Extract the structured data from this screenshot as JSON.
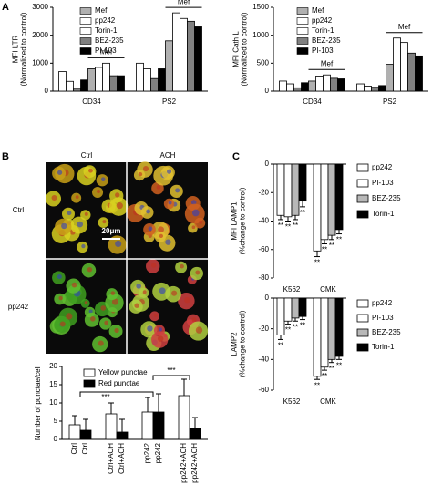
{
  "panel_labels": [
    "A",
    "B",
    "C"
  ],
  "image_panel": {
    "column_labels": [
      "Ctrl",
      "ACH"
    ],
    "row_labels": [
      "Ctrl",
      "pp242"
    ],
    "scale_bar": "20μm"
  },
  "chart_data": [
    {
      "type": "bar",
      "ylabel": [
        "MFI LTR",
        "(Normalized to control)"
      ],
      "categories": [
        "CD34",
        "PS2"
      ],
      "ylim": [
        0,
        3000
      ],
      "yticks": [
        0,
        1000,
        2000,
        3000
      ],
      "annotations": [
        "Mef",
        "Mef"
      ],
      "legend": [
        {
          "name": "Mef",
          "color": "#b0b0b0"
        },
        {
          "name": "pp242",
          "color": "#ffffff"
        },
        {
          "name": "Torin-1",
          "color": "#ffffff"
        },
        {
          "name": "BEZ-235",
          "color": "#808080"
        },
        {
          "name": "PI-103",
          "color": "#000000"
        }
      ],
      "series": [
        {
          "color": "#ffffff",
          "values": [
            700,
            1000
          ]
        },
        {
          "color": "#ffffff",
          "values": [
            350,
            800
          ]
        },
        {
          "color": "#808080",
          "values": [
            100,
            450
          ]
        },
        {
          "color": "#000000",
          "values": [
            400,
            800
          ]
        },
        {
          "color": "#b0b0b0",
          "values": [
            800,
            1800
          ]
        },
        {
          "color": "#ffffff",
          "values": [
            850,
            2800
          ]
        },
        {
          "color": "#ffffff",
          "values": [
            1000,
            2600
          ]
        },
        {
          "color": "#808080",
          "values": [
            550,
            2500
          ]
        },
        {
          "color": "#000000",
          "values": [
            550,
            2300
          ]
        }
      ]
    },
    {
      "type": "bar",
      "ylabel": [
        "MFI Cath L",
        "(Normalized to control)"
      ],
      "categories": [
        "CD34",
        "PS2"
      ],
      "ylim": [
        0,
        1500
      ],
      "yticks": [
        0,
        500,
        1000,
        1500
      ],
      "annotations": [
        "Mef",
        "Mef"
      ],
      "legend": [
        {
          "name": "Mef",
          "color": "#b0b0b0"
        },
        {
          "name": "pp242",
          "color": "#ffffff"
        },
        {
          "name": "Torin-1",
          "color": "#ffffff"
        },
        {
          "name": "BEZ-235",
          "color": "#808080"
        },
        {
          "name": "PI-103",
          "color": "#000000"
        }
      ],
      "series": [
        {
          "color": "#ffffff",
          "values": [
            180,
            130
          ]
        },
        {
          "color": "#ffffff",
          "values": [
            130,
            90
          ]
        },
        {
          "color": "#808080",
          "values": [
            60,
            70
          ]
        },
        {
          "color": "#000000",
          "values": [
            150,
            100
          ]
        },
        {
          "color": "#b0b0b0",
          "values": [
            180,
            480
          ]
        },
        {
          "color": "#ffffff",
          "values": [
            270,
            950
          ]
        },
        {
          "color": "#ffffff",
          "values": [
            290,
            870
          ]
        },
        {
          "color": "#808080",
          "values": [
            230,
            680
          ]
        },
        {
          "color": "#000000",
          "values": [
            220,
            630
          ]
        }
      ]
    },
    {
      "type": "bar",
      "ylabel": [
        "Number of punctae/cell"
      ],
      "categories": [
        "Ctrl",
        "Ctrl+ACH",
        "pp242",
        "pp242+ACH"
      ],
      "ylim": [
        0,
        20
      ],
      "yticks": [
        0,
        5,
        10,
        15,
        20
      ],
      "annotations": [
        "***",
        "***"
      ],
      "series": [
        {
          "name": "Yellow punctae",
          "color": "#ffffff",
          "values": [
            4,
            7,
            7.5,
            12
          ],
          "errors": [
            2.5,
            3,
            4,
            4.5
          ]
        },
        {
          "name": "Red punctae",
          "color": "#000000",
          "values": [
            2.5,
            2,
            7.5,
            3
          ],
          "errors": [
            3,
            3.5,
            5,
            3
          ]
        }
      ]
    },
    {
      "type": "bar",
      "ylabel": [
        "MFI LAMP1",
        "(%change to control)"
      ],
      "categories": [
        "K562",
        "CMK"
      ],
      "ylim": [
        -80,
        0
      ],
      "yticks": [
        0,
        -20,
        -40,
        -60,
        -80
      ],
      "series": [
        {
          "name": "pp242",
          "color": "#ffffff",
          "values": [
            -36,
            -61
          ],
          "errors": [
            3,
            4
          ],
          "significance": [
            "**",
            "**"
          ]
        },
        {
          "name": "PI-103",
          "color": "#ffffff",
          "values": [
            -37,
            -53
          ],
          "errors": [
            3,
            3
          ],
          "significance": [
            "**",
            "**"
          ]
        },
        {
          "name": "BEZ-235",
          "color": "#b8b8b8",
          "values": [
            -36,
            -50
          ],
          "errors": [
            3,
            3
          ],
          "significance": [
            "**",
            "**"
          ]
        },
        {
          "name": "Torin-1",
          "color": "#000000",
          "values": [
            -26,
            -46
          ],
          "errors": [
            4,
            3
          ],
          "significance": [
            "**",
            "**"
          ]
        }
      ]
    },
    {
      "type": "bar",
      "ylabel": [
        "LAMP2",
        "(%change to control)"
      ],
      "categories": [
        "K562",
        "CMK"
      ],
      "ylim": [
        -60,
        0
      ],
      "yticks": [
        0,
        -20,
        -40,
        -60
      ],
      "series": [
        {
          "name": "pp242",
          "color": "#ffffff",
          "values": [
            -24,
            -51
          ],
          "errors": [
            3,
            2
          ],
          "significance": [
            "**",
            "**"
          ]
        },
        {
          "name": "PI-103",
          "color": "#ffffff",
          "values": [
            -15,
            -45
          ],
          "errors": [
            2,
            2
          ],
          "significance": [
            "**",
            "**"
          ]
        },
        {
          "name": "BEZ-235",
          "color": "#b8b8b8",
          "values": [
            -13,
            -40
          ],
          "errors": [
            2,
            2
          ],
          "significance": [
            "**",
            "**"
          ]
        },
        {
          "name": "Torin-1",
          "color": "#000000",
          "values": [
            -12,
            -38
          ],
          "errors": [
            2,
            2
          ],
          "significance": [
            "**",
            "**"
          ]
        }
      ]
    }
  ]
}
